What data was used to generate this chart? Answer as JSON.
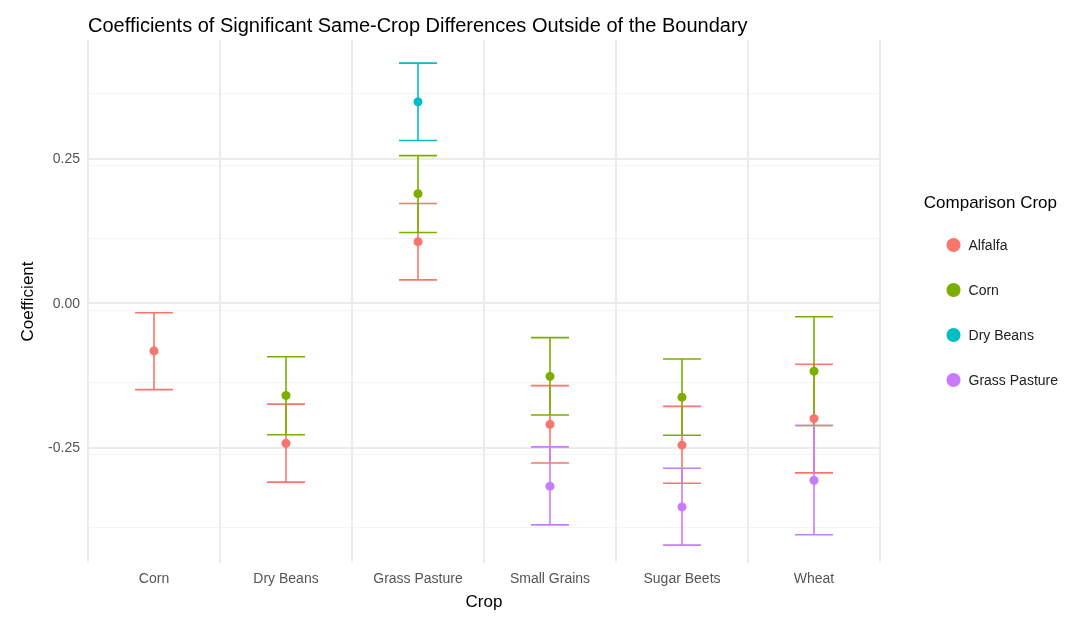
{
  "chart_data": {
    "type": "scatter",
    "title": "Coefficients of Significant Same-Crop Differences Outside of the Boundary",
    "xlabel": "Crop",
    "ylabel": "Coefficient",
    "legend_title": "Comparison Crop",
    "categories": [
      "Corn",
      "Dry Beans",
      "Grass Pasture",
      "Small Grains",
      "Sugar Beets",
      "Wheat"
    ],
    "series": [
      {
        "name": "Alfalfa",
        "color": "#f8766d",
        "values": [
          -0.083,
          -0.243,
          0.106,
          -0.21,
          -0.246,
          -0.2
        ],
        "errors": [
          [
            -0.15,
            -0.017
          ],
          [
            -0.31,
            -0.175
          ],
          [
            0.04,
            0.172
          ],
          [
            -0.277,
            -0.143
          ],
          [
            -0.312,
            -0.179
          ],
          [
            -0.294,
            -0.106
          ]
        ]
      },
      {
        "name": "Corn",
        "color": "#7cae00",
        "values": [
          null,
          -0.16,
          0.189,
          -0.127,
          -0.163,
          -0.118
        ],
        "errors": [
          null,
          [
            -0.228,
            -0.093
          ],
          [
            0.122,
            0.255
          ],
          [
            -0.194,
            -0.06
          ],
          [
            -0.229,
            -0.097
          ],
          [
            -0.212,
            -0.024
          ]
        ]
      },
      {
        "name": "Dry Beans",
        "color": "#00bfc4",
        "values": [
          null,
          null,
          0.348,
          null,
          null,
          null
        ],
        "errors": [
          null,
          null,
          [
            0.281,
            0.415
          ],
          null,
          null,
          null
        ]
      },
      {
        "name": "Grass Pasture",
        "color": "#c77cff",
        "values": [
          null,
          null,
          null,
          -0.317,
          -0.353,
          -0.307
        ],
        "errors": [
          null,
          null,
          null,
          [
            -0.384,
            -0.249
          ],
          [
            -0.419,
            -0.286
          ],
          [
            -0.401,
            -0.212
          ]
        ]
      }
    ],
    "ylim": [
      -0.45,
      0.455
    ],
    "yticks": [
      {
        "value": -0.25,
        "label": "-0.25"
      },
      {
        "value": 0,
        "label": "0.00"
      },
      {
        "value": 0.25,
        "label": "0.25"
      }
    ],
    "grid": true,
    "legend": "right",
    "marker": "circle"
  }
}
